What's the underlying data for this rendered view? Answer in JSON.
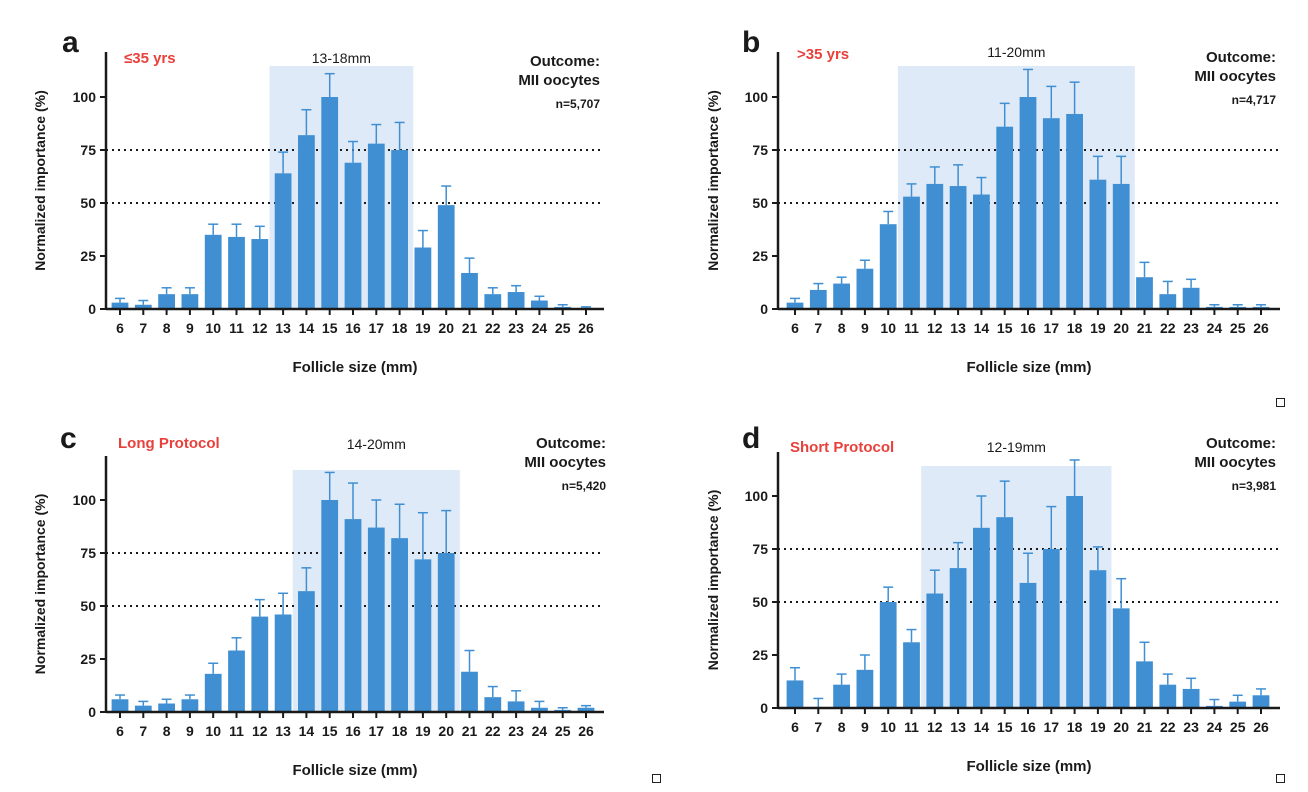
{
  "colors": {
    "bar": "#3f8fd2",
    "highlight": "#dfeaf8",
    "axis": "#1a1a1a",
    "label_red": "#e8413c",
    "text": "#1a1a1a"
  },
  "shared": {
    "x_label": "Follicle size (mm)",
    "y_label": "Normalized importance (%)",
    "outcome_label": "Outcome:",
    "outcome_value": "MII oocytes"
  },
  "chart_data": [
    {
      "panel": "a",
      "type": "bar",
      "subtitle": "≤35 yrs",
      "highlight_label": "13-18mm",
      "highlight_range": [
        13,
        18
      ],
      "n_label": "n=5,707",
      "xlabel": "Follicle size (mm)",
      "ylabel": "Normalized importance (%)",
      "ylim": [
        0,
        120
      ],
      "yticks": [
        0,
        25,
        50,
        75,
        100
      ],
      "reference_lines": [
        50,
        75
      ],
      "categories": [
        "6",
        "7",
        "8",
        "9",
        "10",
        "11",
        "12",
        "13",
        "14",
        "15",
        "16",
        "17",
        "18",
        "19",
        "20",
        "21",
        "22",
        "23",
        "24",
        "25",
        "26"
      ],
      "values": [
        3,
        2,
        7,
        7,
        35,
        34,
        33,
        64,
        82,
        100,
        69,
        78,
        75,
        29,
        49,
        17,
        7,
        8,
        4,
        1,
        0.5
      ],
      "errors": [
        2,
        2,
        3,
        3,
        5,
        6,
        6,
        10,
        12,
        11,
        10,
        9,
        13,
        8,
        9,
        7,
        3,
        3,
        2,
        1,
        0.5
      ]
    },
    {
      "panel": "b",
      "type": "bar",
      "subtitle": ">35 yrs",
      "highlight_label": "11-20mm",
      "highlight_range": [
        11,
        20
      ],
      "n_label": "n=4,717",
      "xlabel": "Follicle size (mm)",
      "ylabel": "Normalized importance (%)",
      "ylim": [
        0,
        120
      ],
      "yticks": [
        0,
        25,
        50,
        75,
        100
      ],
      "reference_lines": [
        50,
        75
      ],
      "categories": [
        "6",
        "7",
        "8",
        "9",
        "10",
        "11",
        "12",
        "13",
        "14",
        "15",
        "16",
        "17",
        "18",
        "19",
        "20",
        "21",
        "22",
        "23",
        "24",
        "25",
        "26"
      ],
      "values": [
        3,
        9,
        12,
        19,
        40,
        53,
        59,
        58,
        54,
        86,
        100,
        90,
        92,
        61,
        59,
        15,
        7,
        10,
        1,
        1,
        1
      ],
      "errors": [
        2,
        3,
        3,
        4,
        6,
        6,
        8,
        10,
        8,
        11,
        13,
        15,
        15,
        11,
        13,
        7,
        6,
        4,
        1,
        1,
        1
      ]
    },
    {
      "panel": "c",
      "type": "bar",
      "subtitle": "Long Protocol",
      "highlight_label": "14-20mm",
      "highlight_range": [
        14,
        20
      ],
      "n_label": "n=5,420",
      "xlabel": "Follicle size (mm)",
      "ylabel": "Normalized importance (%)",
      "ylim": [
        0,
        120
      ],
      "yticks": [
        0,
        25,
        50,
        75,
        100
      ],
      "reference_lines": [
        50,
        75
      ],
      "categories": [
        "6",
        "7",
        "8",
        "9",
        "10",
        "11",
        "12",
        "13",
        "14",
        "15",
        "16",
        "17",
        "18",
        "19",
        "20",
        "21",
        "22",
        "23",
        "24",
        "25",
        "26"
      ],
      "values": [
        6,
        3,
        4,
        6,
        18,
        29,
        45,
        46,
        57,
        100,
        91,
        87,
        82,
        72,
        75,
        19,
        7,
        5,
        2,
        1,
        2
      ],
      "errors": [
        2,
        2,
        2,
        2,
        5,
        6,
        8,
        10,
        11,
        13,
        17,
        13,
        16,
        22,
        20,
        10,
        5,
        5,
        3,
        1,
        1
      ]
    },
    {
      "panel": "d",
      "type": "bar",
      "subtitle": "Short Protocol",
      "highlight_label": "12-19mm",
      "highlight_range": [
        12,
        19
      ],
      "n_label": "n=3,981",
      "xlabel": "Follicle size (mm)",
      "ylabel": "Normalized importance (%)",
      "ylim": [
        0,
        120
      ],
      "yticks": [
        0,
        25,
        50,
        75,
        100
      ],
      "reference_lines": [
        50,
        75
      ],
      "categories": [
        "6",
        "7",
        "8",
        "9",
        "10",
        "11",
        "12",
        "13",
        "14",
        "15",
        "16",
        "17",
        "18",
        "19",
        "20",
        "21",
        "22",
        "23",
        "24",
        "25",
        "26"
      ],
      "values": [
        13,
        0.5,
        11,
        18,
        50,
        31,
        54,
        66,
        85,
        90,
        59,
        75,
        100,
        65,
        47,
        22,
        11,
        9,
        1,
        3,
        6
      ],
      "errors": [
        6,
        4,
        5,
        7,
        7,
        6,
        11,
        12,
        15,
        17,
        14,
        20,
        17,
        11,
        14,
        9,
        5,
        5,
        3,
        3,
        3
      ]
    }
  ]
}
